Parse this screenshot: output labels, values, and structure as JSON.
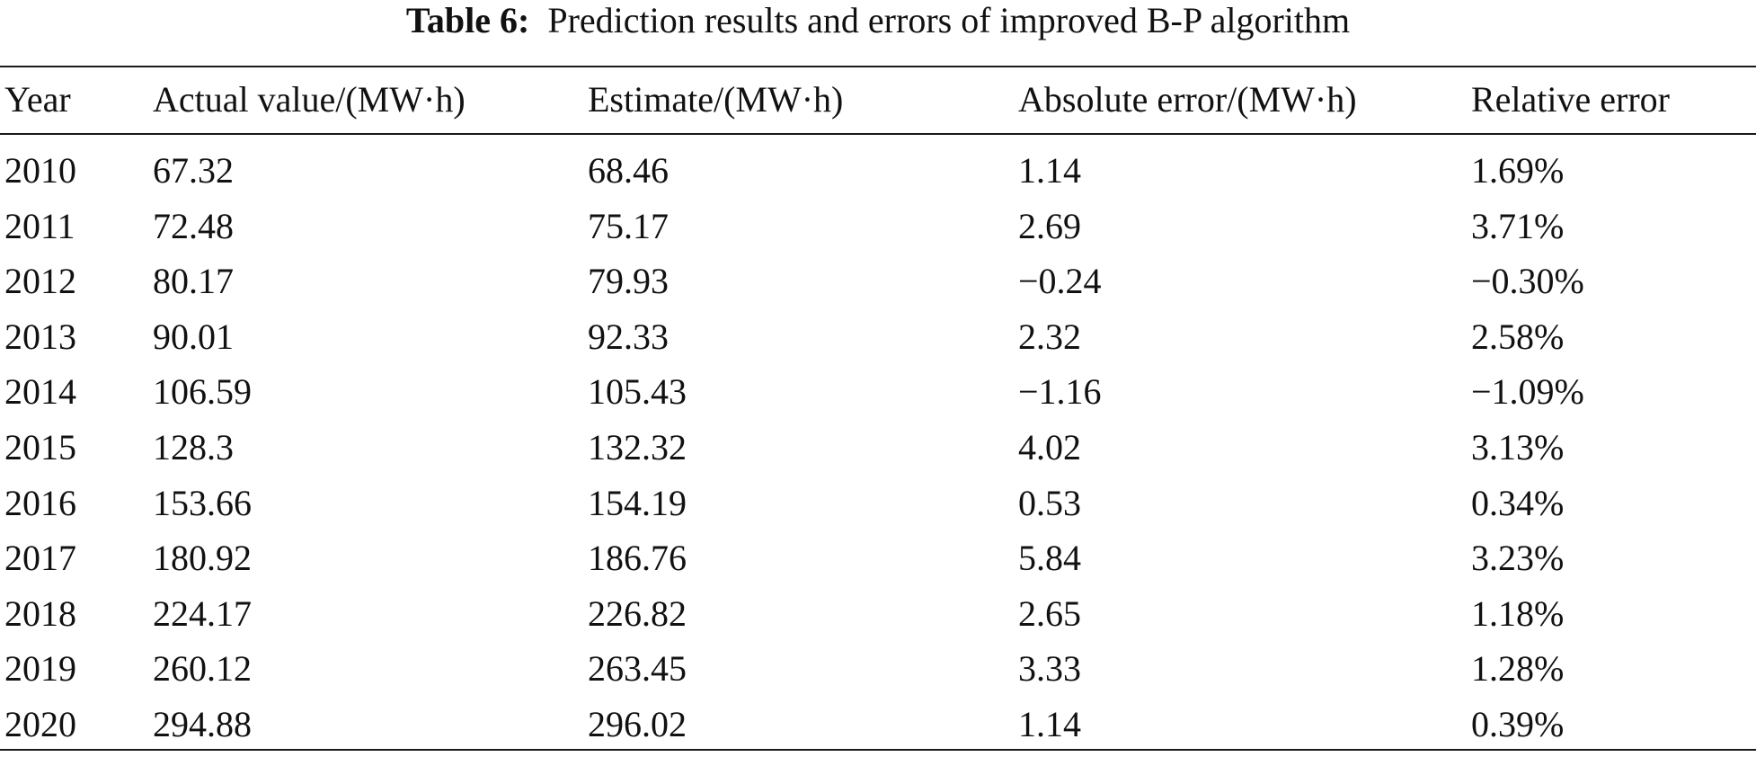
{
  "caption": {
    "label": "Table 6:",
    "text": "Prediction results and errors of improved B-P algorithm"
  },
  "table": {
    "headers": [
      "Year",
      "Actual value/(MW·h)",
      "Estimate/(MW·h)",
      "Absolute error/(MW·h)",
      "Relative error"
    ],
    "rows": [
      [
        "2010",
        "67.32",
        "68.46",
        "1.14",
        "1.69%"
      ],
      [
        "2011",
        "72.48",
        "75.17",
        "2.69",
        "3.71%"
      ],
      [
        "2012",
        "80.17",
        "79.93",
        "−0.24",
        "−0.30%"
      ],
      [
        "2013",
        "90.01",
        "92.33",
        "2.32",
        "2.58%"
      ],
      [
        "2014",
        "106.59",
        "105.43",
        "−1.16",
        "−1.09%"
      ],
      [
        "2015",
        "128.3",
        "132.32",
        "4.02",
        "3.13%"
      ],
      [
        "2016",
        "153.66",
        "154.19",
        "0.53",
        "0.34%"
      ],
      [
        "2017",
        "180.92",
        "186.76",
        "5.84",
        "3.23%"
      ],
      [
        "2018",
        "224.17",
        "226.82",
        "2.65",
        "1.18%"
      ],
      [
        "2019",
        "260.12",
        "263.45",
        "3.33",
        "1.28%"
      ],
      [
        "2020",
        "294.88",
        "296.02",
        "1.14",
        "0.39%"
      ]
    ]
  }
}
